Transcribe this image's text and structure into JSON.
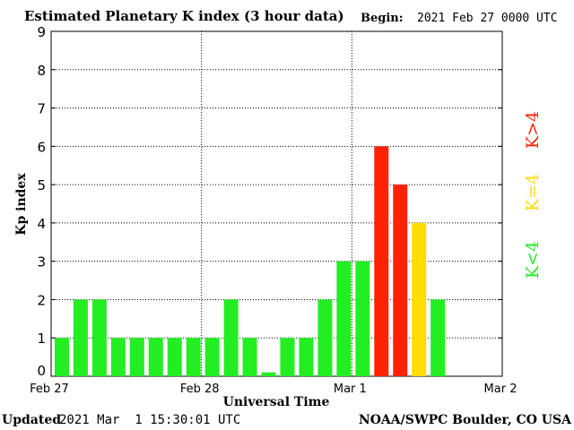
{
  "header": {
    "title": "Estimated Planetary K index (3 hour data)",
    "begin_label": "Begin:",
    "begin_value": "2021 Feb 27 0000 UTC"
  },
  "footer": {
    "updated_label": "Updated",
    "updated_value": "2021 Mar  1 15:30:01 UTC",
    "credit": "NOAA/SWPC Boulder, CO USA"
  },
  "chart_data": {
    "type": "bar",
    "title": "Estimated Planetary K index (3 hour data)",
    "xlabel": "Universal Time",
    "ylabel": "Kp index",
    "ylim": [
      0,
      9
    ],
    "yticks": [
      0,
      1,
      2,
      3,
      4,
      5,
      6,
      7,
      8,
      9
    ],
    "xticks": [
      "Feb 27",
      "Feb 28",
      "Mar 1",
      "Mar 2"
    ],
    "interval_hours": 3,
    "grid": true,
    "values": [
      1,
      2,
      2,
      1,
      1,
      1,
      1,
      1,
      1,
      2,
      1,
      0.1,
      1,
      1,
      2,
      3,
      3,
      6,
      5,
      4,
      2
    ],
    "colors": {
      "below": "#22ee22",
      "equal": "#ffdd00",
      "above": "#ff2200"
    },
    "legend": [
      {
        "label": "K<4",
        "color": "#22ee22"
      },
      {
        "label": "K=4",
        "color": "#ffdd00"
      },
      {
        "label": "K>4",
        "color": "#ff2200"
      }
    ]
  }
}
